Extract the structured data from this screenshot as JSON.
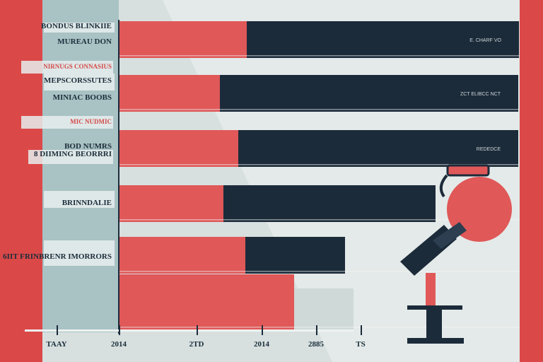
{
  "chart_data": {
    "type": "bar",
    "title": "",
    "xlabel": "",
    "ylabel": "",
    "categories": [
      "BONDUS BLINKIIE",
      "MUREAU DON",
      "NIRNUGS CONNASIUS",
      "MEPSCORSSUTES",
      "MINIAC BOOBS",
      "MIC NUDMIC",
      "BOD NUMRS",
      "8 DIIMING BEORRRI",
      "BRINNDALIE",
      "6IIT FRINBRENR IMORRORS"
    ],
    "bars": [
      {
        "pink": 181,
        "navy": 385,
        "label": "E. CHARF VO"
      },
      {
        "pink": 143,
        "navy": 422,
        "label": "ZCT ELIBCC NCT"
      },
      {
        "pink": 169,
        "navy": 396,
        "label": "REDEDCE"
      },
      {
        "pink": 148,
        "navy": 300,
        "label": ""
      },
      {
        "pink": 179,
        "navy": 141,
        "label": ""
      },
      {
        "pink": 248,
        "light": 84,
        "label": ""
      }
    ],
    "x_ticks": [
      "TAAY",
      "2014",
      "2TD",
      "2014",
      "2885",
      "TS"
    ]
  },
  "colors": {
    "pink": "#e05858",
    "navy": "#1c2b3a",
    "light": "#cfd9d8",
    "frame_red": "#db4848",
    "panel": "#a9c2c4",
    "background": "#d7e0df"
  },
  "icons": [
    "microphone-icon"
  ]
}
